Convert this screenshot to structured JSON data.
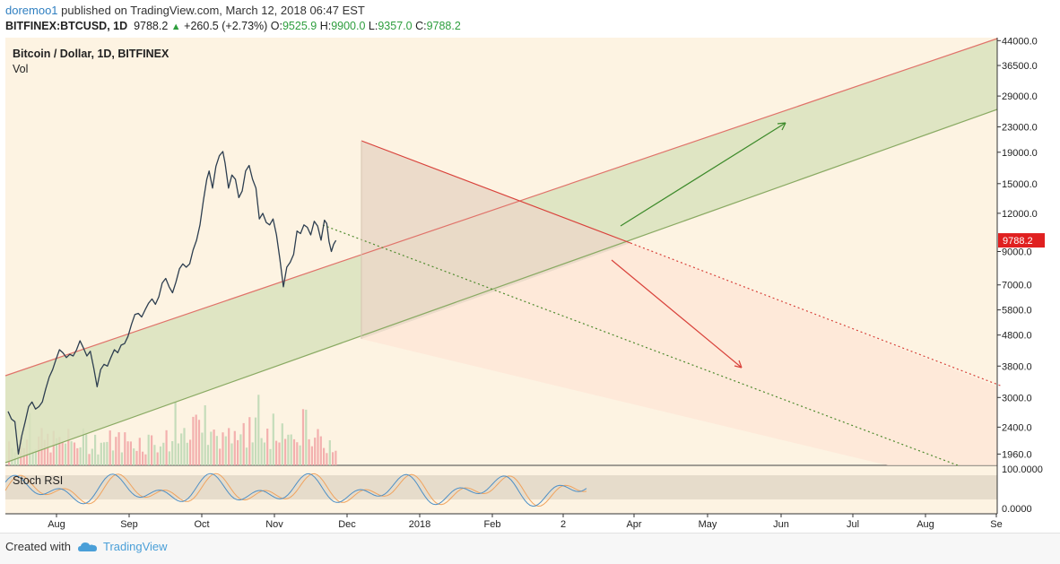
{
  "header": {
    "author": "doremoo1",
    "published_text": "published on TradingView.com, March 12, 2018 06:47 EST",
    "symbol": "BITFINEX:BTCUSD, 1D",
    "last": "9788.2",
    "change": "+260.5 (+2.73%)",
    "open_label": "O:",
    "open": "9525.9",
    "high_label": "H:",
    "high": "9900.0",
    "low_label": "L:",
    "low": "9357.0",
    "close_label": "C:",
    "close": "9788.2"
  },
  "footer": {
    "created_with": "Created with",
    "brand": "TradingView"
  },
  "colors": {
    "background": "#fdf3e2",
    "price_line": "#2d3e50",
    "upper_channel": "#e0736a",
    "lower_channel": "#8aaa63",
    "channel_fill": "#d9e2bd",
    "triangle_fill": "#ead8c8",
    "vol_up": "#bfd9b6",
    "vol_down": "#f2a9a9",
    "price_tag": "#e02020",
    "rsi_k": "#4d8fc6",
    "rsi_d": "#f0a35e"
  },
  "chart_data": {
    "type": "line",
    "title": "Bitcoin / Dollar, 1D, BITFINEX",
    "pane_label": "Vol",
    "y_scale": "log",
    "ylim": [
      1800,
      45000
    ],
    "y_ticks": [
      "44000.0",
      "36500.0",
      "29000.0",
      "23000.0",
      "19000.0",
      "15000.0",
      "12000.0",
      "9000.0",
      "7000.0",
      "5800.0",
      "4800.0",
      "3800.0",
      "3000.0",
      "2400.0",
      "1960.0"
    ],
    "x_ticks": [
      "Aug",
      "Sep",
      "Oct",
      "Nov",
      "Dec",
      "2018",
      "Feb",
      "2",
      "Apr",
      "May",
      "Jun",
      "Jul",
      "Aug",
      "Se"
    ],
    "last_price_label": "9788.2",
    "series": [
      {
        "values": [
          [
            0,
            2700
          ],
          [
            3,
            2550
          ],
          [
            6,
            2500
          ],
          [
            9,
            1960
          ],
          [
            12,
            2250
          ],
          [
            15,
            2500
          ],
          [
            18,
            2800
          ],
          [
            21,
            2900
          ],
          [
            24,
            2750
          ],
          [
            27,
            2800
          ],
          [
            30,
            2900
          ],
          [
            33,
            3200
          ],
          [
            36,
            3500
          ],
          [
            39,
            3700
          ],
          [
            42,
            4000
          ],
          [
            45,
            4300
          ],
          [
            48,
            4200
          ],
          [
            51,
            4050
          ],
          [
            54,
            4150
          ],
          [
            57,
            4100
          ],
          [
            60,
            4300
          ],
          [
            63,
            4600
          ],
          [
            66,
            4350
          ],
          [
            69,
            4100
          ],
          [
            72,
            4250
          ],
          [
            75,
            3750
          ],
          [
            78,
            3250
          ],
          [
            81,
            3700
          ],
          [
            84,
            3850
          ],
          [
            87,
            3800
          ],
          [
            90,
            4050
          ],
          [
            93,
            4300
          ],
          [
            96,
            4200
          ],
          [
            99,
            4450
          ],
          [
            102,
            4500
          ],
          [
            105,
            4750
          ],
          [
            108,
            5200
          ],
          [
            111,
            5600
          ],
          [
            114,
            5650
          ],
          [
            117,
            5500
          ],
          [
            120,
            5800
          ],
          [
            123,
            6100
          ],
          [
            126,
            6300
          ],
          [
            129,
            6050
          ],
          [
            132,
            6400
          ],
          [
            135,
            7100
          ],
          [
            138,
            7350
          ],
          [
            141,
            6900
          ],
          [
            144,
            6600
          ],
          [
            147,
            7150
          ],
          [
            150,
            7900
          ],
          [
            153,
            8200
          ],
          [
            156,
            8000
          ],
          [
            159,
            8200
          ],
          [
            162,
            9100
          ],
          [
            165,
            9800
          ],
          [
            168,
            11000
          ],
          [
            171,
            13200
          ],
          [
            174,
            15500
          ],
          [
            176,
            16500
          ],
          [
            179,
            14500
          ],
          [
            182,
            17100
          ],
          [
            185,
            18500
          ],
          [
            188,
            19100
          ],
          [
            190,
            17500
          ],
          [
            193,
            14500
          ],
          [
            196,
            16000
          ],
          [
            199,
            15500
          ],
          [
            202,
            13500
          ],
          [
            205,
            14200
          ],
          [
            208,
            16500
          ],
          [
            211,
            17200
          ],
          [
            214,
            15500
          ],
          [
            217,
            14500
          ],
          [
            220,
            11500
          ],
          [
            223,
            12000
          ],
          [
            226,
            11200
          ],
          [
            229,
            11000
          ],
          [
            232,
            11500
          ],
          [
            235,
            10200
          ],
          [
            238,
            8500
          ],
          [
            241,
            6900
          ],
          [
            244,
            8000
          ],
          [
            247,
            8300
          ],
          [
            250,
            8800
          ],
          [
            253,
            10500
          ],
          [
            256,
            10300
          ],
          [
            259,
            11000
          ],
          [
            262,
            10800
          ],
          [
            265,
            10200
          ],
          [
            268,
            11300
          ],
          [
            271,
            10900
          ],
          [
            274,
            9800
          ],
          [
            277,
            11400
          ],
          [
            279,
            11100
          ],
          [
            281,
            9700
          ],
          [
            283,
            9000
          ],
          [
            285,
            9500
          ],
          [
            287,
            9788
          ]
        ]
      }
    ]
  },
  "rsi_panel": {
    "label": "Stoch RSI",
    "ticks": [
      "100.0000",
      "0.0000"
    ]
  }
}
